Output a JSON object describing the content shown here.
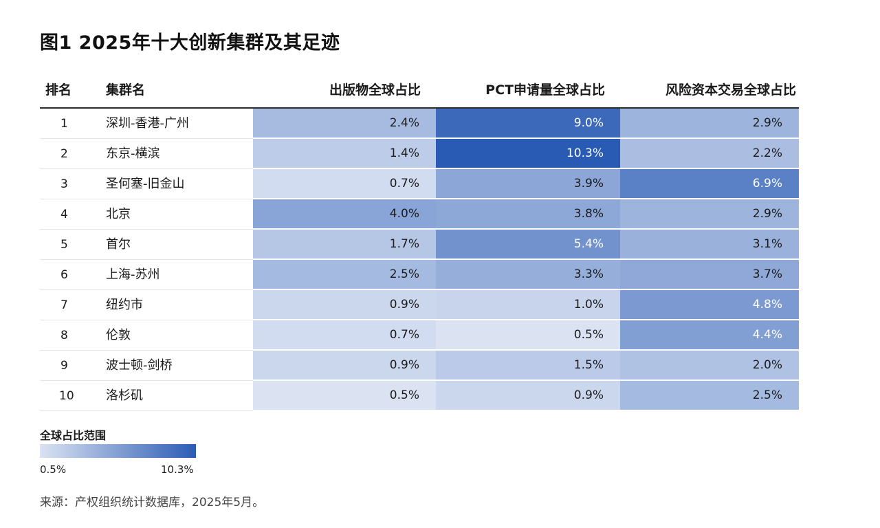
{
  "title": "图1 2025年十大创新集群及其足迹",
  "chart_data": {
    "type": "table",
    "columns": [
      "排名",
      "集群名",
      "出版物全球占比",
      "PCT申请量全球占比",
      "风险资本交易全球占比"
    ],
    "rows": [
      {
        "rank": "1",
        "name": "深圳-香港-广州",
        "values": [
          2.4,
          9.0,
          2.9
        ],
        "labels": [
          "2.4%",
          "9.0%",
          "2.9%"
        ]
      },
      {
        "rank": "2",
        "name": "东京-横滨",
        "values": [
          1.4,
          10.3,
          2.2
        ],
        "labels": [
          "1.4%",
          "10.3%",
          "2.2%"
        ]
      },
      {
        "rank": "3",
        "name": "圣何塞-旧金山",
        "values": [
          0.7,
          3.9,
          6.9
        ],
        "labels": [
          "0.7%",
          "3.9%",
          "6.9%"
        ]
      },
      {
        "rank": "4",
        "name": "北京",
        "values": [
          4.0,
          3.8,
          2.9
        ],
        "labels": [
          "4.0%",
          "3.8%",
          "2.9%"
        ]
      },
      {
        "rank": "5",
        "name": "首尔",
        "values": [
          1.7,
          5.4,
          3.1
        ],
        "labels": [
          "1.7%",
          "5.4%",
          "3.1%"
        ]
      },
      {
        "rank": "6",
        "name": "上海-苏州",
        "values": [
          2.5,
          3.3,
          3.7
        ],
        "labels": [
          "2.5%",
          "3.3%",
          "3.7%"
        ]
      },
      {
        "rank": "7",
        "name": "纽约市",
        "values": [
          0.9,
          1.0,
          4.8
        ],
        "labels": [
          "0.9%",
          "1.0%",
          "4.8%"
        ]
      },
      {
        "rank": "8",
        "name": "伦敦",
        "values": [
          0.7,
          0.5,
          4.4
        ],
        "labels": [
          "0.7%",
          "0.5%",
          "4.4%"
        ]
      },
      {
        "rank": "9",
        "name": "波士顿-剑桥",
        "values": [
          0.9,
          1.5,
          2.0
        ],
        "labels": [
          "0.9%",
          "1.5%",
          "2.0%"
        ]
      },
      {
        "rank": "10",
        "name": "洛杉矶",
        "values": [
          0.5,
          0.9,
          2.5
        ],
        "labels": [
          "0.5%",
          "0.9%",
          "2.5%"
        ]
      }
    ],
    "color_scale": {
      "title": "全球占比范围",
      "min": 0.5,
      "max": 10.3,
      "min_label": "0.5%",
      "max_label": "10.3%",
      "min_color": "#dbe3f3",
      "max_color": "#2a5bb4"
    }
  },
  "source": "来源：产权组织统计数据库，2025年5月。"
}
